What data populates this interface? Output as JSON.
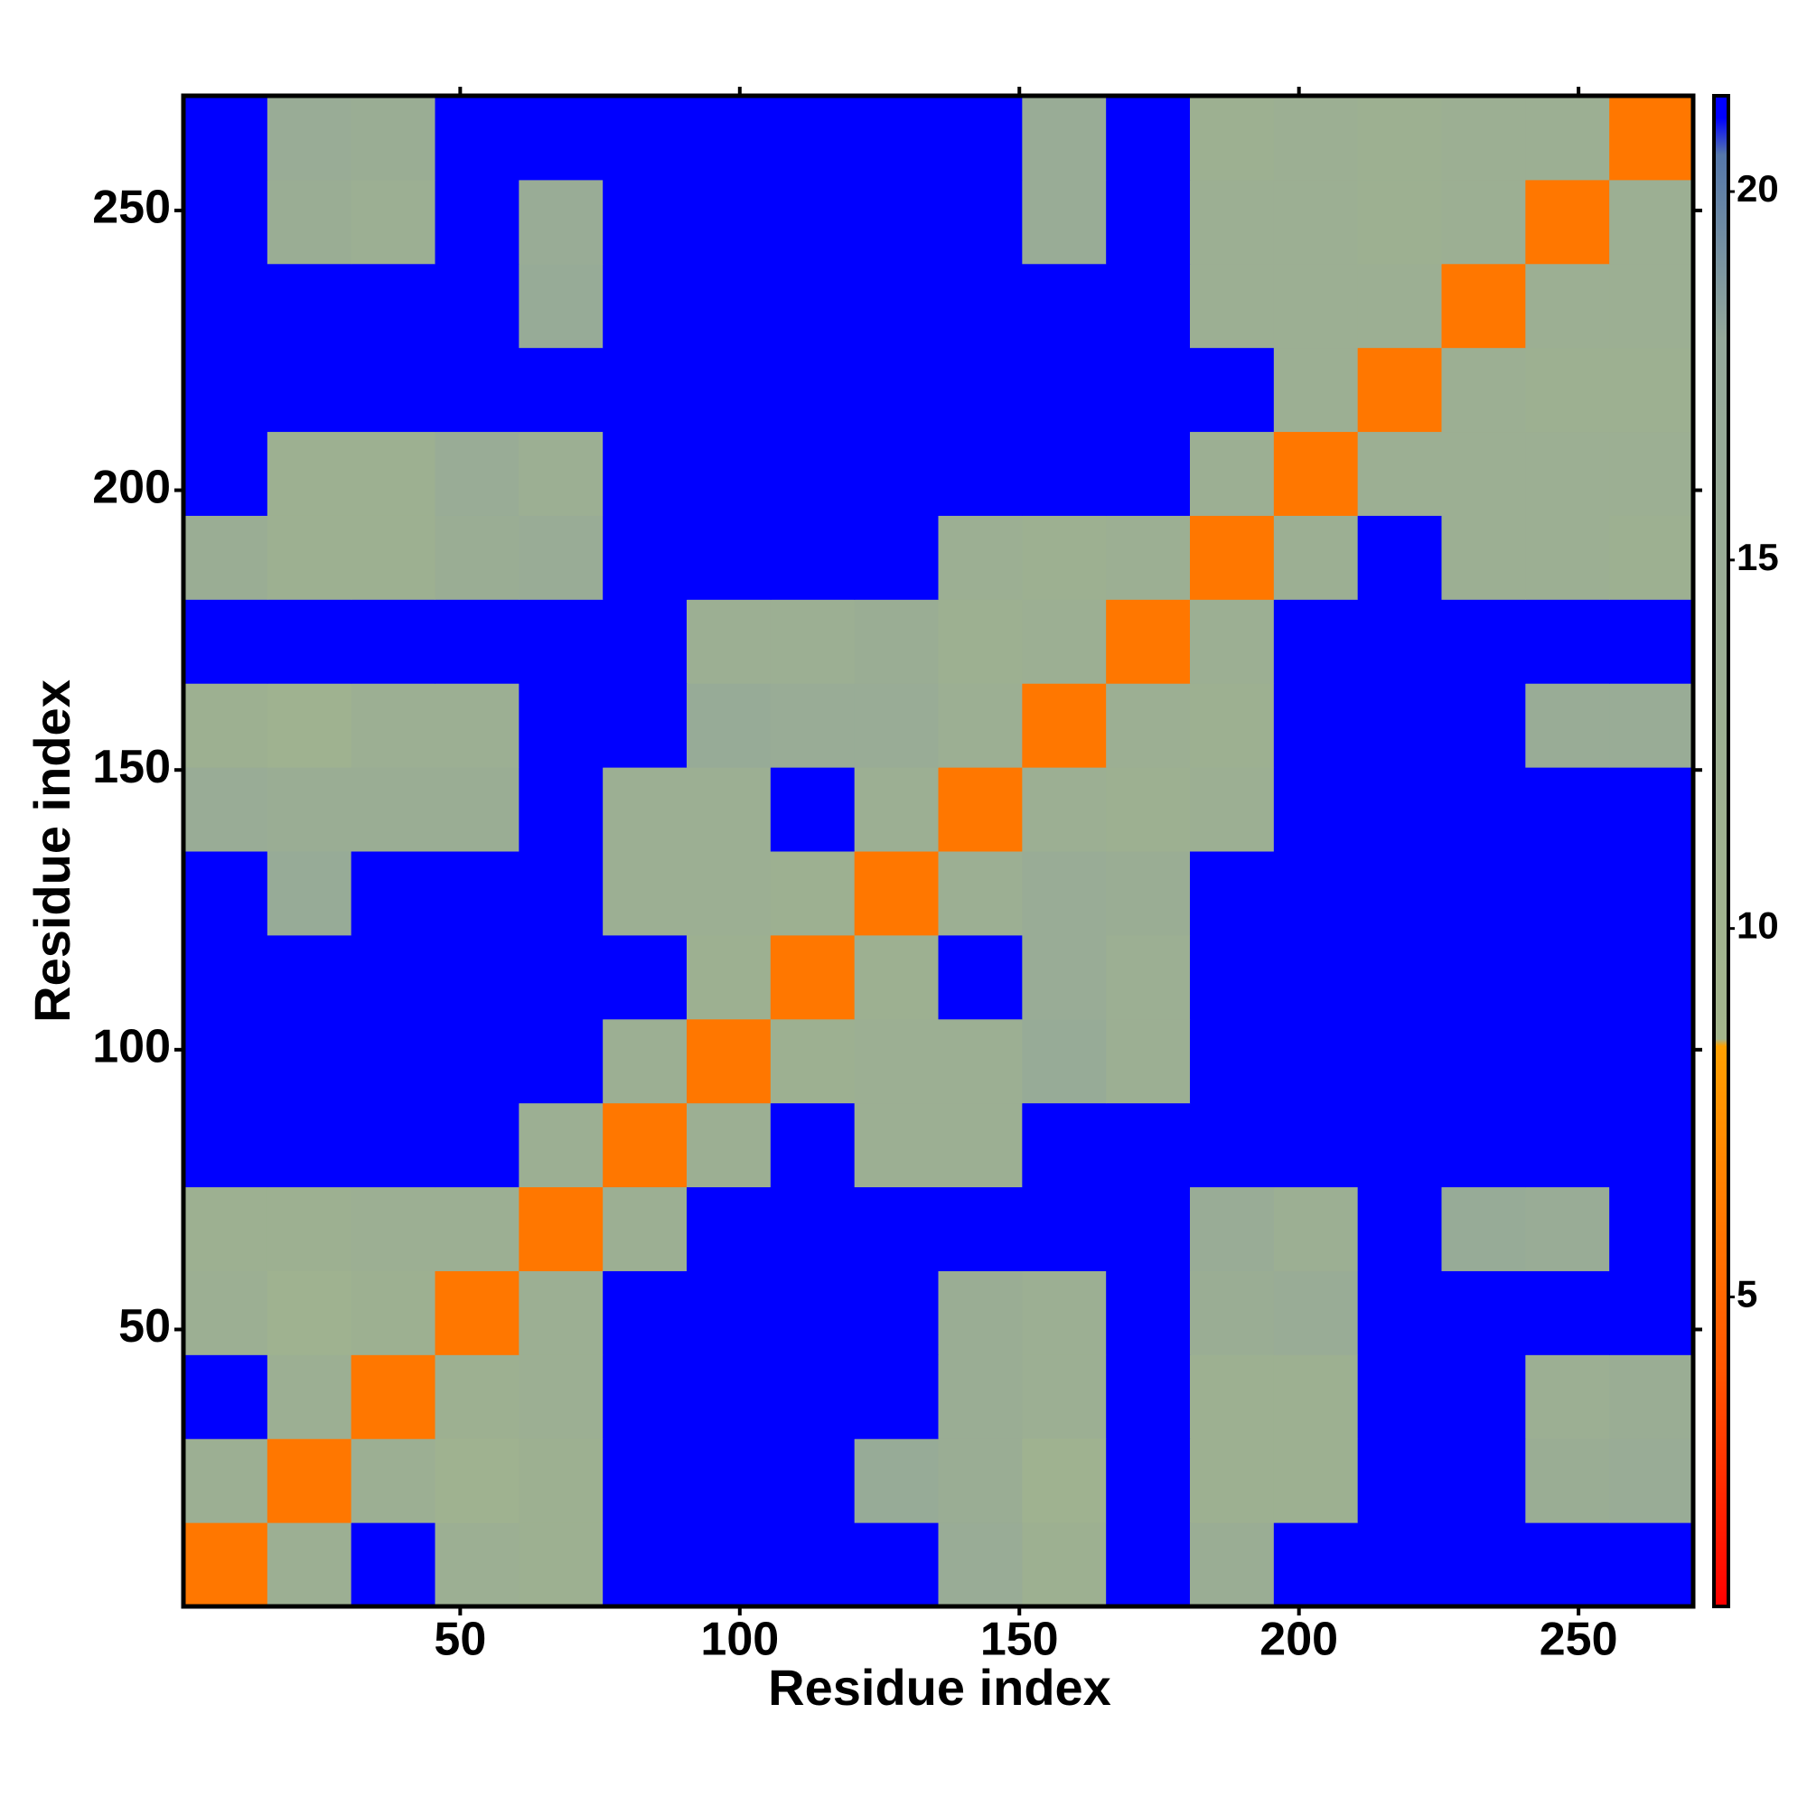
{
  "chart_data": {
    "type": "heatmap",
    "x_label": "Residue index",
    "y_label": "Residue index",
    "x_bins": [
      0.5,
      15.5,
      30.5,
      45.5,
      60.5,
      75.5,
      90.5,
      105.5,
      120.5,
      135.5,
      150.5,
      165.5,
      180.5,
      195.5,
      210.5,
      225.5,
      240.5,
      255.5,
      270.5
    ],
    "y_bins": [
      0.5,
      15.5,
      30.5,
      45.5,
      60.5,
      75.5,
      90.5,
      105.5,
      120.5,
      135.5,
      150.5,
      165.5,
      180.5,
      195.5,
      210.5,
      225.5,
      240.5,
      255.5,
      270.5
    ],
    "z": [
      [
        6,
        13,
        21,
        13,
        12,
        21,
        21,
        21,
        21,
        15,
        12,
        21,
        14,
        21,
        21,
        21,
        21,
        21
      ],
      [
        13,
        6,
        13,
        11,
        12,
        21,
        21,
        21,
        16,
        14,
        11,
        21,
        12,
        12,
        21,
        21,
        14,
        15
      ],
      [
        21,
        13,
        6,
        12,
        13,
        21,
        21,
        21,
        21,
        14,
        13,
        21,
        12,
        12,
        21,
        21,
        13,
        14
      ],
      [
        13,
        11,
        12,
        6,
        13,
        21,
        21,
        21,
        21,
        14,
        13,
        21,
        14,
        15,
        21,
        21,
        21,
        21
      ],
      [
        12,
        12,
        13,
        13,
        6,
        13,
        21,
        21,
        21,
        21,
        21,
        21,
        15,
        13,
        21,
        16,
        15,
        21
      ],
      [
        21,
        21,
        21,
        21,
        13,
        6,
        13,
        21,
        13,
        13,
        21,
        21,
        21,
        21,
        21,
        21,
        21,
        21
      ],
      [
        21,
        21,
        21,
        21,
        21,
        13,
        6,
        12,
        13,
        13,
        16,
        13,
        21,
        21,
        21,
        21,
        21,
        21
      ],
      [
        21,
        21,
        21,
        21,
        21,
        21,
        12,
        6,
        12,
        21,
        15,
        13,
        21,
        21,
        21,
        21,
        21,
        21
      ],
      [
        21,
        16,
        21,
        21,
        21,
        13,
        13,
        12,
        6,
        13,
        15,
        14,
        21,
        21,
        21,
        21,
        21,
        21
      ],
      [
        15,
        14,
        14,
        14,
        21,
        13,
        13,
        21,
        13,
        6,
        13,
        12,
        13,
        21,
        21,
        21,
        21,
        21
      ],
      [
        12,
        11,
        13,
        13,
        21,
        21,
        16,
        15,
        15,
        13,
        6,
        13,
        12,
        21,
        21,
        21,
        15,
        15
      ],
      [
        21,
        21,
        21,
        21,
        21,
        21,
        13,
        13,
        14,
        12,
        13,
        6,
        13,
        21,
        21,
        21,
        21,
        21
      ],
      [
        14,
        12,
        12,
        14,
        15,
        21,
        21,
        21,
        21,
        13,
        12,
        13,
        6,
        13,
        21,
        13,
        13,
        12
      ],
      [
        21,
        12,
        12,
        15,
        13,
        21,
        21,
        21,
        21,
        21,
        21,
        21,
        13,
        6,
        13,
        13,
        13,
        13
      ],
      [
        21,
        21,
        21,
        21,
        21,
        21,
        21,
        21,
        21,
        21,
        21,
        21,
        21,
        13,
        6,
        13,
        12,
        12
      ],
      [
        21,
        21,
        21,
        21,
        16,
        21,
        21,
        21,
        21,
        21,
        21,
        21,
        13,
        13,
        13,
        6,
        13,
        13
      ],
      [
        21,
        14,
        13,
        21,
        15,
        21,
        21,
        21,
        21,
        21,
        15,
        21,
        13,
        13,
        12,
        13,
        6,
        13
      ],
      [
        21,
        15,
        14,
        21,
        21,
        21,
        21,
        21,
        21,
        21,
        15,
        21,
        12,
        13,
        12,
        13,
        13,
        6
      ]
    ],
    "xlim": [
      0.5,
      270.5
    ],
    "ylim": [
      0.5,
      270.5
    ],
    "xticks": [
      50,
      100,
      150,
      200,
      250
    ],
    "yticks": [
      50,
      100,
      150,
      200,
      250
    ],
    "colorbar": {
      "lim": [
        0.8,
        21.3
      ],
      "ticks": [
        5,
        10,
        15,
        20
      ],
      "stops": [
        {
          "value": 0.8,
          "color": "#ff0000"
        },
        {
          "value": 4,
          "color": "#ff5500"
        },
        {
          "value": 8.4,
          "color": "#ffa000"
        },
        {
          "value": 8.5,
          "color": "#a3b58c"
        },
        {
          "value": 18,
          "color": "#94a89a"
        },
        {
          "value": 20.5,
          "color": "#5577aa"
        },
        {
          "value": 21,
          "color": "#0000ff"
        }
      ]
    }
  }
}
